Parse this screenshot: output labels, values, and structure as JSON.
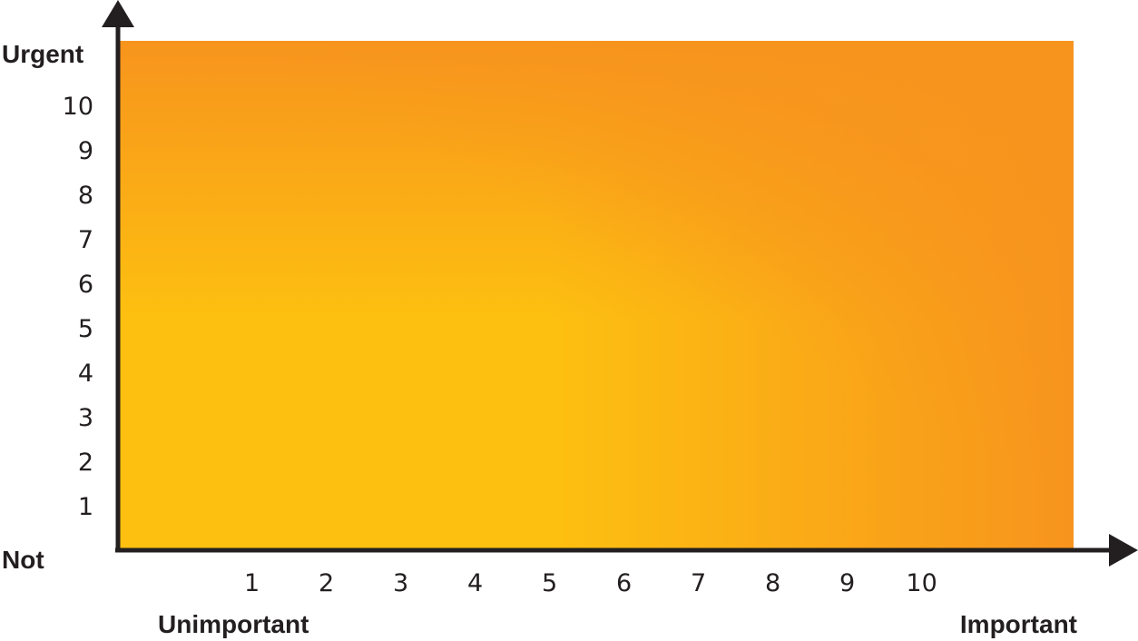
{
  "chart_data": {
    "type": "heatmap",
    "title": "",
    "xlabel": "",
    "ylabel": "",
    "x_ticks": [
      "1",
      "2",
      "3",
      "4",
      "5",
      "6",
      "7",
      "8",
      "9",
      "10"
    ],
    "y_ticks": [
      "1",
      "2",
      "3",
      "4",
      "5",
      "6",
      "7",
      "8",
      "9",
      "10"
    ],
    "xlim": [
      0,
      12.6
    ],
    "ylim": [
      0,
      11.5
    ],
    "x_end_labels": {
      "low": "Unimportant",
      "high": "Important"
    },
    "y_end_labels": {
      "low": "Not",
      "high": "Urgent"
    },
    "colors": {
      "low": "#fdc010",
      "high_right": "#f7941d",
      "high_top": "#f7941d",
      "axis": "#231f20"
    }
  }
}
